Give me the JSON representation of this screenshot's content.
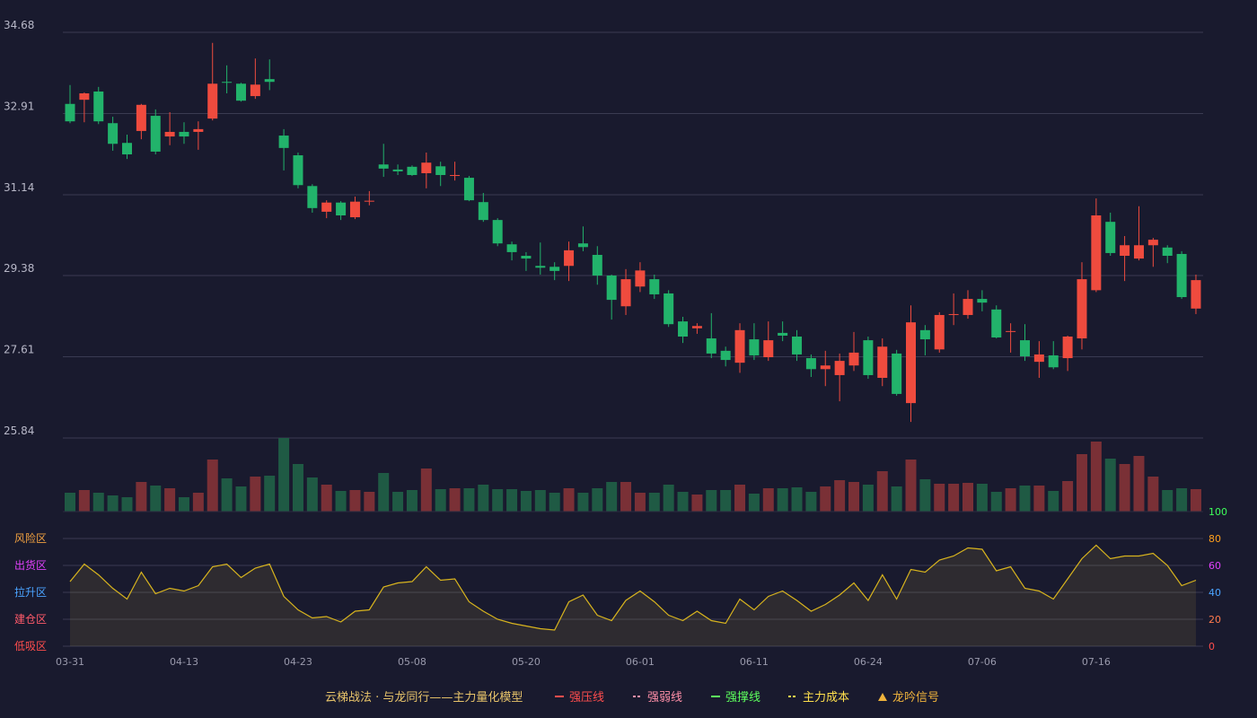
{
  "chart_data": [
    {
      "type": "candlestick",
      "open": [
        33.12,
        33.21,
        33.39,
        32.7,
        32.27,
        32.53,
        32.86,
        32.41,
        32.51,
        32.51,
        32.8,
        33.6,
        33.56,
        33.29,
        33.66,
        32.43,
        32.0,
        31.33,
        30.77,
        30.97,
        30.65,
        30.99,
        31.8,
        31.69,
        31.75,
        31.61,
        31.76,
        31.55,
        31.51,
        30.98,
        30.59,
        30.06,
        29.81,
        29.59,
        29.57,
        29.59,
        30.08,
        29.83,
        29.38,
        28.71,
        29.14,
        29.3,
        28.99,
        28.38,
        28.23,
        28.01,
        27.74,
        27.48,
        27.99,
        27.6,
        28.13,
        28.05,
        27.58,
        27.34,
        27.21,
        27.42,
        27.97,
        27.15,
        27.68,
        26.6,
        28.19,
        27.77,
        28.52,
        28.52,
        28.87,
        28.64,
        28.15,
        27.97,
        27.5,
        27.64,
        27.58,
        28.01,
        29.06,
        30.55,
        29.81,
        29.75,
        30.04,
        29.99,
        29.85,
        28.66
      ],
      "high": [
        33.53,
        33.37,
        33.49,
        32.84,
        32.45,
        33.12,
        33.0,
        32.94,
        32.72,
        32.74,
        34.45,
        33.96,
        33.58,
        34.11,
        34.09,
        32.57,
        32.06,
        31.37,
        31.02,
        31.0,
        31.1,
        31.22,
        32.25,
        31.8,
        31.78,
        32.06,
        31.86,
        31.86,
        31.55,
        31.18,
        30.63,
        30.12,
        29.89,
        30.1,
        29.67,
        30.12,
        30.45,
        30.02,
        29.4,
        29.52,
        29.67,
        29.4,
        29.06,
        28.48,
        28.34,
        28.56,
        27.83,
        28.34,
        28.34,
        28.38,
        28.38,
        28.19,
        27.66,
        27.74,
        27.68,
        28.15,
        28.05,
        28.01,
        27.76,
        28.73,
        28.3,
        28.58,
        28.99,
        29.06,
        29.06,
        28.73,
        28.34,
        28.32,
        27.95,
        27.95,
        28.07,
        29.67,
        31.06,
        30.75,
        30.24,
        30.89,
        30.2,
        30.04,
        29.91,
        29.4
      ],
      "low": [
        32.7,
        32.72,
        32.68,
        32.1,
        31.92,
        32.35,
        32.02,
        32.22,
        32.25,
        32.12,
        32.76,
        33.35,
        33.17,
        33.23,
        33.42,
        31.67,
        31.28,
        30.75,
        30.63,
        30.59,
        30.61,
        30.91,
        31.53,
        31.57,
        31.55,
        31.28,
        31.33,
        31.45,
        31.0,
        30.55,
        30.02,
        29.71,
        29.48,
        29.4,
        29.28,
        29.26,
        29.91,
        29.18,
        28.42,
        28.52,
        29.02,
        28.87,
        28.26,
        27.91,
        28.11,
        27.58,
        27.4,
        27.26,
        27.54,
        27.52,
        27.95,
        27.52,
        27.17,
        26.97,
        26.64,
        27.3,
        27.13,
        26.97,
        26.76,
        26.19,
        27.64,
        27.7,
        28.3,
        28.44,
        28.6,
        28.01,
        27.7,
        27.52,
        27.15,
        27.34,
        27.3,
        27.77,
        29.02,
        29.81,
        29.26,
        29.71,
        29.57,
        29.65,
        28.87,
        28.54
      ],
      "close": [
        32.74,
        33.35,
        32.74,
        32.25,
        32.02,
        33.1,
        32.08,
        32.51,
        32.41,
        32.57,
        33.56,
        33.58,
        33.19,
        33.54,
        33.6,
        32.16,
        31.35,
        30.85,
        30.97,
        30.69,
        30.99,
        31.01,
        31.71,
        31.65,
        31.57,
        31.84,
        31.57,
        31.57,
        31.02,
        30.59,
        30.08,
        29.89,
        29.75,
        29.55,
        29.48,
        29.93,
        30.0,
        29.38,
        28.85,
        29.3,
        29.49,
        28.97,
        28.32,
        28.05,
        28.28,
        27.68,
        27.54,
        28.19,
        27.64,
        27.97,
        28.07,
        27.66,
        27.34,
        27.42,
        27.52,
        27.7,
        27.21,
        27.83,
        26.8,
        28.36,
        27.99,
        28.52,
        28.54,
        28.87,
        28.79,
        28.03,
        28.17,
        27.62,
        27.66,
        27.38,
        28.05,
        29.3,
        30.69,
        29.87,
        30.04,
        30.04,
        30.16,
        29.81,
        28.91,
        29.28
      ],
      "up_color": "#ef4b3e",
      "down_color": "#22b36b",
      "ylim": [
        25.84,
        34.68
      ],
      "yticks": [
        25.84,
        27.61,
        29.38,
        31.14,
        32.91,
        34.68
      ],
      "grid": true,
      "legend": {
        "title": "云梯战法 · 与龙同行——主力量化模型",
        "items": [
          {
            "name": "强压线",
            "color": "#ff4d4d",
            "style": "solid"
          },
          {
            "name": "强弱线",
            "color": "#ff8fa8",
            "style": "dashed"
          },
          {
            "name": "强撑线",
            "color": "#5dff5d",
            "style": "solid"
          },
          {
            "name": "主力成本",
            "color": "#ffe04d",
            "style": "dashed"
          },
          {
            "name": "龙吟信号",
            "color": "#f0b43c",
            "style": "triangle"
          }
        ]
      }
    },
    {
      "type": "volume",
      "values": [
        21,
        24,
        21,
        18,
        16,
        33,
        29,
        26,
        16,
        21,
        58,
        37,
        28,
        39,
        40,
        82,
        53,
        38,
        30,
        23,
        24,
        22,
        43,
        22,
        24,
        48,
        25,
        26,
        26,
        30,
        25,
        25,
        23,
        24,
        21,
        26,
        21,
        26,
        33,
        33,
        21,
        21,
        30,
        22,
        19,
        24,
        24,
        30,
        20,
        26,
        26,
        27,
        22,
        28,
        35,
        33,
        30,
        45,
        28,
        58,
        36,
        31,
        31,
        32,
        31,
        22,
        26,
        29,
        29,
        23,
        34,
        64,
        78,
        59,
        53,
        62,
        39,
        24,
        26,
        25
      ],
      "up_color": "#7a3036",
      "down_color": "#1f5a44"
    },
    {
      "type": "line",
      "categories": [
        "03-31",
        null,
        null,
        null,
        null,
        null,
        null,
        null,
        "04-13",
        null,
        null,
        null,
        null,
        null,
        null,
        null,
        "04-23",
        null,
        null,
        null,
        null,
        null,
        null,
        null,
        "05-08",
        null,
        null,
        null,
        null,
        null,
        null,
        null,
        "05-20",
        null,
        null,
        null,
        null,
        null,
        null,
        null,
        "06-01",
        null,
        null,
        null,
        null,
        null,
        null,
        null,
        "06-11",
        null,
        null,
        null,
        null,
        null,
        null,
        null,
        "06-24",
        null,
        null,
        null,
        null,
        null,
        null,
        null,
        "07-06",
        null,
        null,
        null,
        null,
        null,
        null,
        null,
        "07-16",
        null,
        null,
        null,
        null,
        null,
        null,
        null
      ],
      "values": [
        48,
        61,
        53,
        43,
        35,
        55,
        39,
        43,
        41,
        45,
        59,
        61,
        51,
        58,
        61,
        37,
        27,
        21,
        22,
        18,
        26,
        27,
        44,
        47,
        48,
        59,
        49,
        50,
        33,
        26,
        20,
        17,
        15,
        13,
        12,
        33,
        38,
        23,
        19,
        34,
        41,
        33,
        23,
        19,
        26,
        19,
        17,
        35,
        27,
        37,
        41,
        34,
        26,
        31,
        38,
        47,
        34,
        53,
        35,
        57,
        55,
        64,
        67,
        73,
        72,
        56,
        59,
        43,
        41,
        35,
        50,
        65,
        75,
        65,
        67,
        67,
        69,
        60,
        45,
        49
      ],
      "color": "#d8b41e",
      "ylim": [
        0,
        100
      ],
      "yticks": [
        0,
        20,
        40,
        60,
        80,
        100
      ],
      "ytick_colors": [
        "#ff4d4d",
        "#ff7a4d",
        "#4aa3ff",
        "#e040fb",
        "#ff9f1c",
        "#3dff5a"
      ],
      "zones": [
        "风险区",
        "出货区",
        "拉升区",
        "建仓区",
        "低吸区"
      ],
      "zone_colors": [
        "#f0a040",
        "#e040fb",
        "#4aa3ff",
        "#ff5a6a",
        "#ff4d4d"
      ]
    }
  ]
}
